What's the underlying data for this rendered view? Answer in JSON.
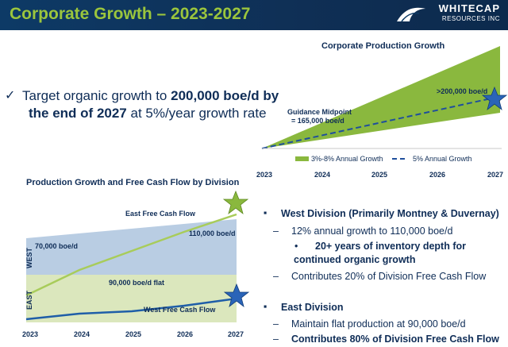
{
  "header": {
    "title": "Corporate Growth – 2023-2027",
    "logo_word": "WHITECAP",
    "logo_sub": "RESOURCES INC",
    "bg_color": "#0d3a66",
    "title_color": "#9bc53d"
  },
  "target": {
    "check_icon": "✓",
    "line1_a": "Target organic growth to ",
    "line1_b": "200,000 boe/d by",
    "line2_a": "the end of 2027",
    "line2_b": " at 5%/year growth rate"
  },
  "corp_chart": {
    "title": "Corporate Production Growth",
    "guidance_line1": "Guidance Midpoint",
    "guidance_line2": "= 165,000 boe/d",
    "end_label": ">200,000 boe/d",
    "x_ticks": [
      "2023",
      "2024",
      "2025",
      "2026",
      "2027"
    ],
    "legend_band": "3%-8% Annual Growth",
    "legend_line": "5% Annual Growth",
    "band_color": "#8ab83e",
    "line_color": "#1f4f9c",
    "star_color": "#2a64b8"
  },
  "div_chart": {
    "title": "Production Growth and Free Cash Flow by Division",
    "east_fcf_label": "East Free Cash Flow",
    "west_fcf_label": "West Free Cash Flow",
    "west_start_label": "70,000 boe/d",
    "west_end_label": "110,000 boe/d",
    "east_flat_label": "90,000 boe/d flat",
    "west_axis": "WEST",
    "east_axis": "EAST",
    "x_ticks": [
      "2023",
      "2024",
      "2025",
      "2026",
      "2027"
    ],
    "west_fill": "#b9cde3",
    "east_fill": "#dbe7bd",
    "east_fcf_color": "#8ab83e",
    "west_fcf_color": "#1f5ea8"
  },
  "west_division": {
    "heading": "West Division (Primarily Montney & Duvernay)",
    "point1": "12% annual growth to 110,000 boe/d",
    "sub1_line1": "20+ years of inventory depth for",
    "sub1_line2": "continued organic growth",
    "point2": "Contributes 20% of Division Free Cash Flow"
  },
  "east_division": {
    "heading": "East Division",
    "point1": "Maintain flat production at 90,000 boe/d",
    "point2": "Contributes 80% of Division Free Cash Flow"
  },
  "bullets": {
    "square": "▪",
    "dash": "–",
    "dot": "•"
  }
}
